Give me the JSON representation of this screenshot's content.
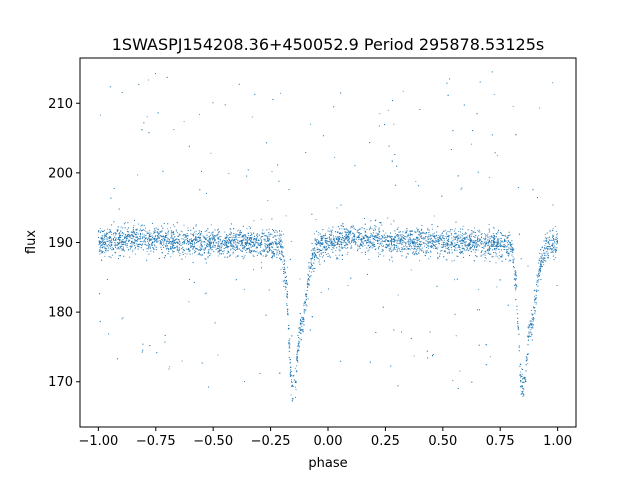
{
  "chart_data": {
    "type": "scatter",
    "title": "1SWASPJ154208.36+450052.9 Period 295878.53125s",
    "xlabel": "phase",
    "ylabel": "flux",
    "xlim": [
      -1.08,
      1.08
    ],
    "ylim": [
      163.5,
      216.5
    ],
    "x_ticks": [
      -1.0,
      -0.75,
      -0.5,
      -0.25,
      0.0,
      0.25,
      0.5,
      0.75,
      1.0
    ],
    "x_tick_labels": [
      "−1.00",
      "−0.75",
      "−0.50",
      "−0.25",
      "0.00",
      "0.25",
      "0.50",
      "0.75",
      "1.00"
    ],
    "y_ticks": [
      170,
      180,
      190,
      200,
      210
    ],
    "y_tick_labels": [
      "170",
      "180",
      "190",
      "200",
      "210"
    ],
    "grid": false,
    "legend": "none",
    "series": [
      {
        "color": "#1f77b4",
        "marker": "point",
        "profile_x": [
          -1.0,
          -0.9,
          -0.8,
          -0.7,
          -0.6,
          -0.5,
          -0.4,
          -0.3,
          -0.2,
          -0.18,
          -0.17,
          -0.16,
          -0.15,
          -0.14,
          -0.13,
          -0.12,
          -0.11,
          -0.1,
          -0.08,
          -0.05,
          0.0,
          0.1,
          0.2,
          0.3,
          0.4,
          0.5,
          0.6,
          0.7,
          0.8,
          0.82,
          0.83,
          0.84,
          0.85,
          0.86,
          0.87,
          0.88,
          0.89,
          0.9,
          0.92,
          0.95,
          1.0
        ],
        "profile_y": [
          190,
          190.3,
          190.5,
          190.3,
          190.0,
          189.8,
          190.0,
          189.8,
          189.5,
          184,
          176,
          170,
          169,
          170,
          175,
          178,
          178,
          181,
          186,
          189.5,
          190,
          190.5,
          190.4,
          190.2,
          190.0,
          190.0,
          190.0,
          189.8,
          189.5,
          184,
          176,
          170,
          169,
          170,
          175,
          178,
          178,
          181,
          186,
          189.5,
          190
        ],
        "scatter_sd": 1.0
      }
    ]
  }
}
